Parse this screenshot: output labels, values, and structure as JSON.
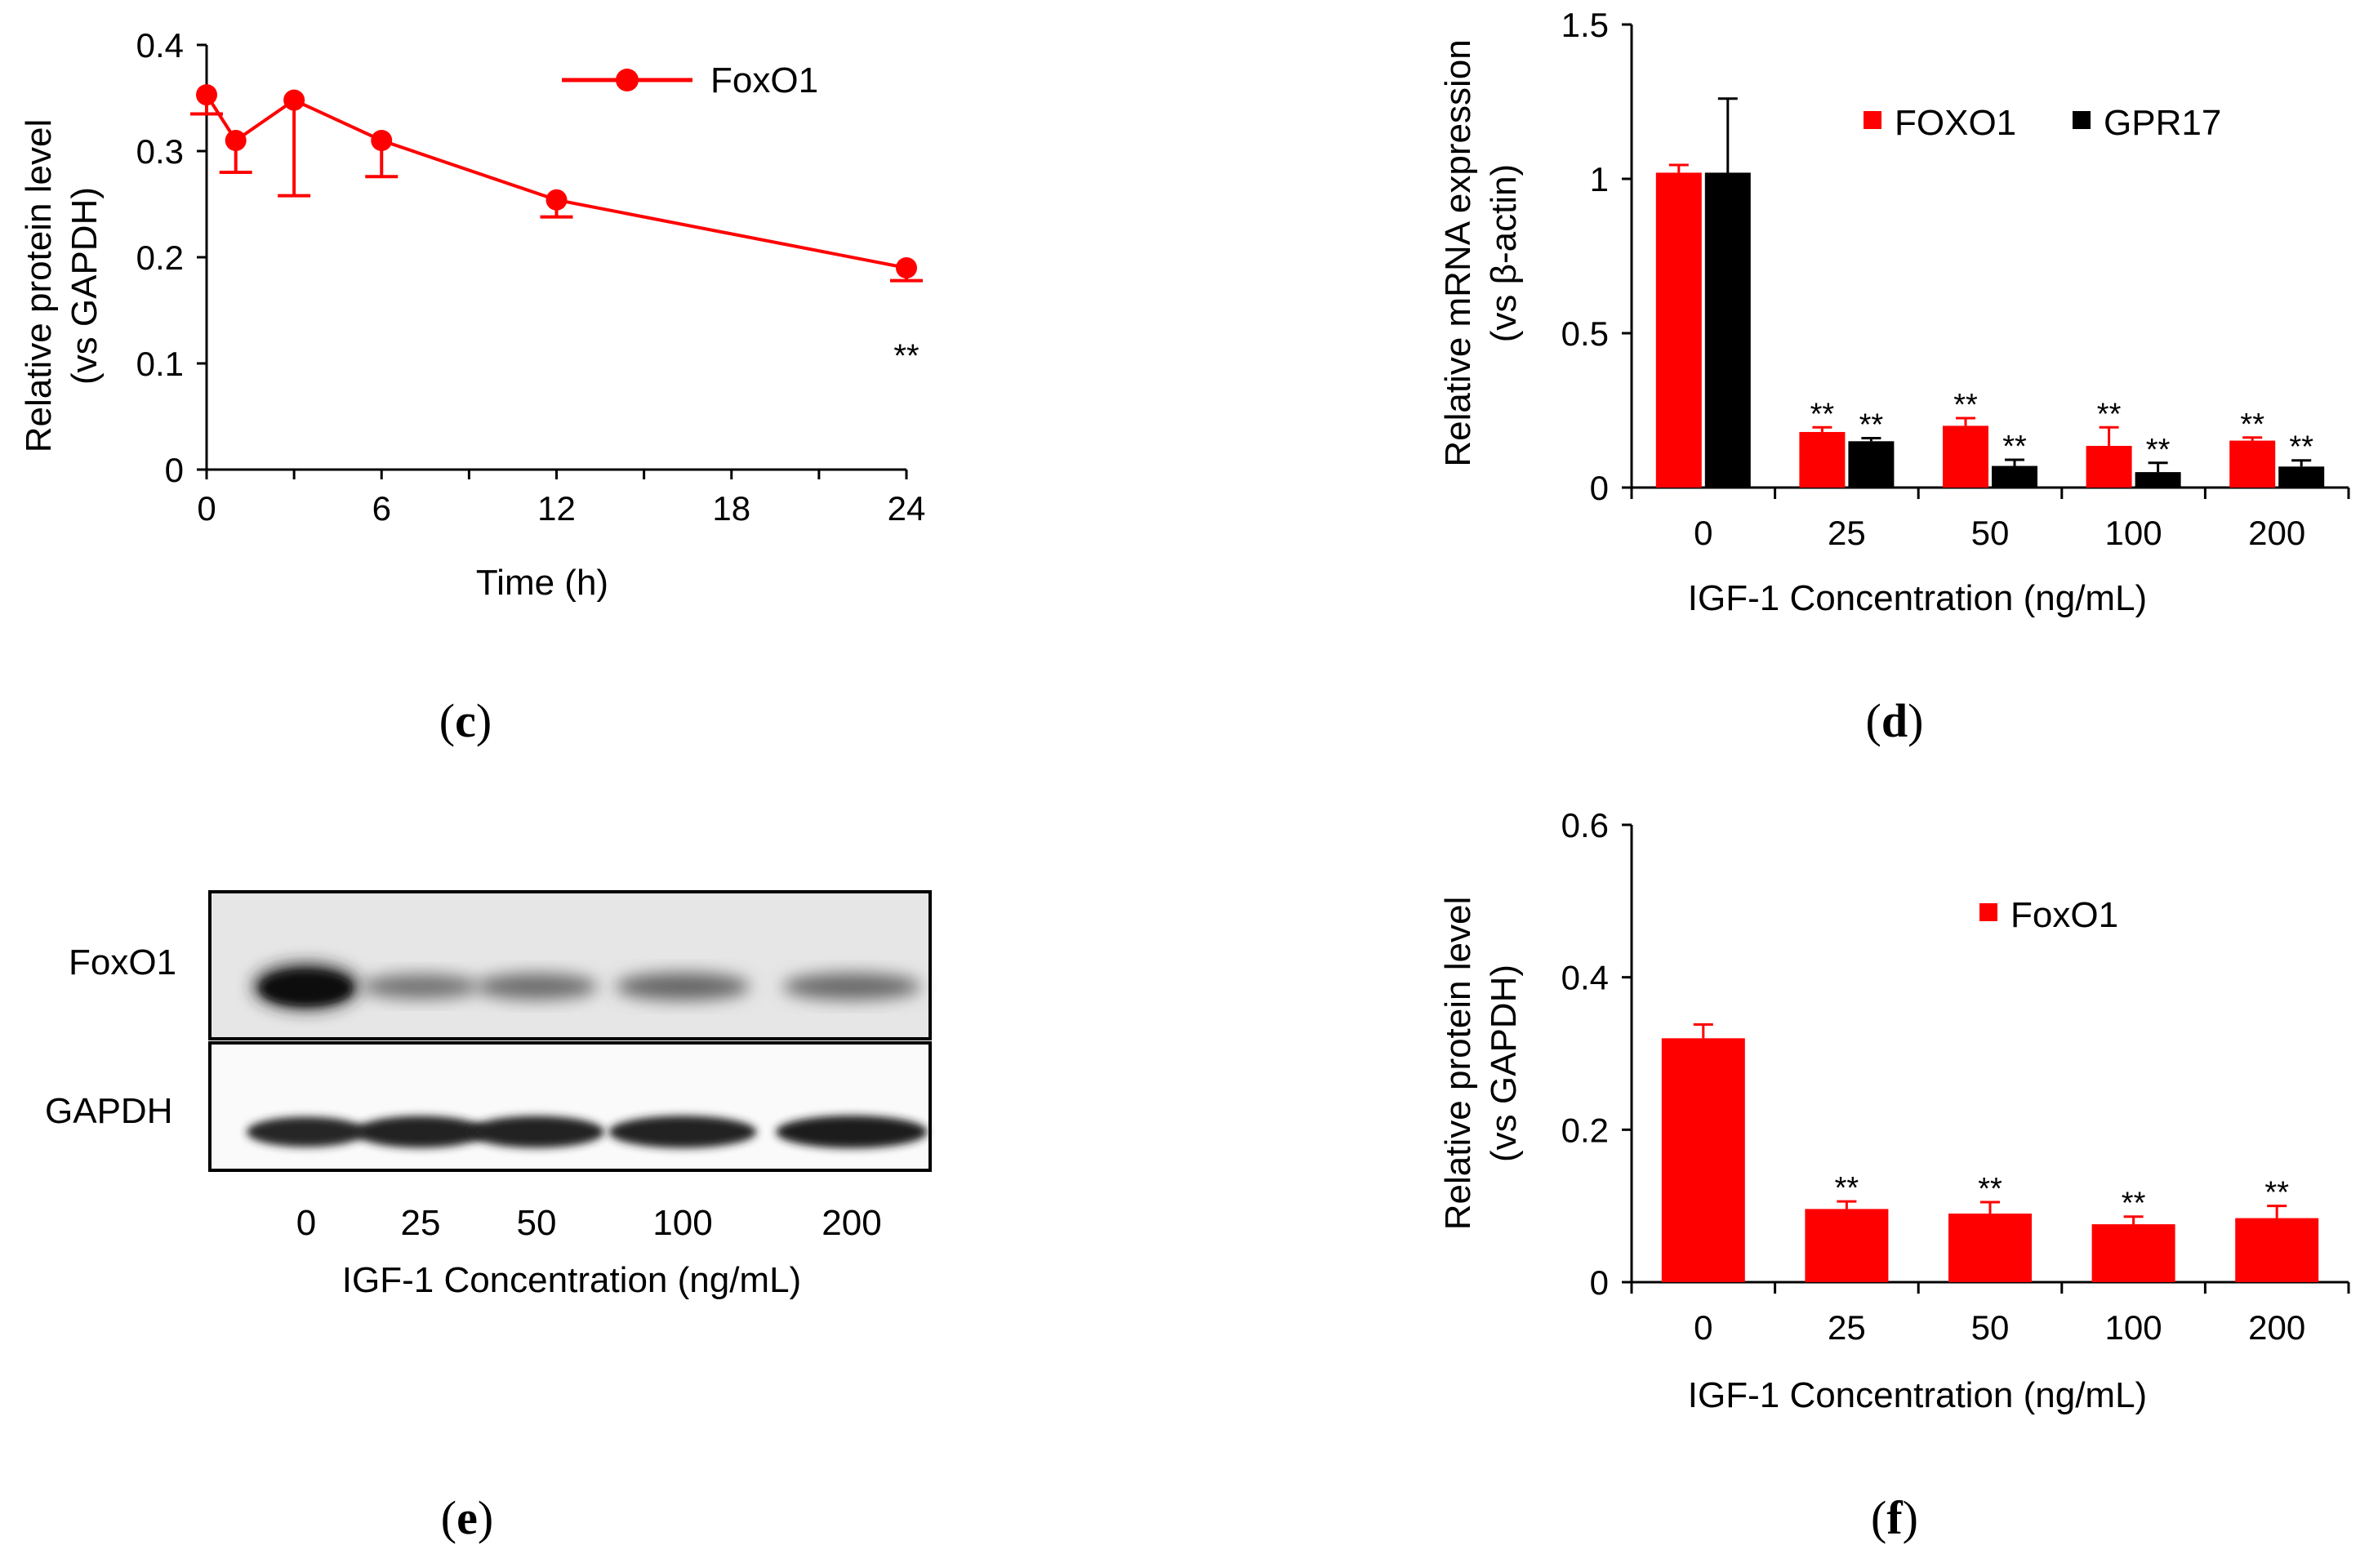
{
  "colors": {
    "red": "#ff0000",
    "black": "#000000",
    "axis": "#000000"
  },
  "panels": {
    "c": {
      "label": "c"
    },
    "d": {
      "label": "d"
    },
    "e": {
      "label": "e"
    },
    "f": {
      "label": "f"
    }
  },
  "chart_data": [
    {
      "panel": "c",
      "type": "line",
      "title": "",
      "xlabel": "Time (h)",
      "ylabel": [
        "Relative protein level",
        "(vs GAPDH)"
      ],
      "x_ticks": [
        "0",
        "6",
        "12",
        "18",
        "24"
      ],
      "y_ticks": [
        "0",
        "0.1",
        "0.2",
        "0.3",
        "0.4"
      ],
      "xlim": [
        0,
        24
      ],
      "ylim": [
        0,
        0.4
      ],
      "legend": "top-right",
      "series": [
        {
          "name": "FoxO1",
          "x": [
            0,
            1,
            3,
            6,
            12,
            24
          ],
          "y": [
            0.353,
            0.31,
            0.348,
            0.31,
            0.254,
            0.19
          ],
          "err": [
            0.018,
            0.03,
            0.09,
            0.034,
            0.016,
            0.012
          ],
          "err_dir": [
            -1,
            -1,
            -1,
            -1,
            -1,
            -1
          ]
        }
      ],
      "annotations": [
        {
          "x": 24,
          "text": "**"
        }
      ]
    },
    {
      "panel": "d",
      "type": "bar",
      "title": "",
      "xlabel": "IGF-1 Concentration   (ng/mL)",
      "ylabel": [
        "Relative mRNA expression",
        "(vs β-actin)"
      ],
      "categories": [
        "0",
        "25",
        "50",
        "100",
        "200"
      ],
      "y_ticks": [
        "0",
        "0.5",
        "1",
        "1.5"
      ],
      "ylim": [
        0,
        1.5
      ],
      "legend": "top-right",
      "series": [
        {
          "name": "FOXO1",
          "values": [
            1.02,
            0.18,
            0.2,
            0.135,
            0.152
          ],
          "err": [
            0.025,
            0.015,
            0.025,
            0.06,
            0.01
          ],
          "stars": [
            "",
            "**",
            "**",
            "**",
            "**"
          ]
        },
        {
          "name": "GPR17",
          "values": [
            1.02,
            0.15,
            0.07,
            0.05,
            0.068
          ],
          "err": [
            0.24,
            0.01,
            0.02,
            0.03,
            0.02
          ],
          "stars": [
            "",
            "**",
            "**",
            "**",
            "**"
          ]
        }
      ]
    },
    {
      "panel": "f",
      "type": "bar",
      "title": "",
      "xlabel": "IGF-1 Concentration   (ng/mL)",
      "ylabel": [
        "Relative protein  level",
        "(vs GAPDH)"
      ],
      "categories": [
        "0",
        "25",
        "50",
        "100",
        "200"
      ],
      "y_ticks": [
        "0",
        "0.2",
        "0.4",
        "0.6"
      ],
      "ylim": [
        0,
        0.6
      ],
      "legend": "top-right",
      "series": [
        {
          "name": "FoxO1",
          "values": [
            0.32,
            0.096,
            0.09,
            0.076,
            0.084
          ],
          "err": [
            0.018,
            0.01,
            0.015,
            0.01,
            0.016
          ],
          "stars": [
            "",
            "**",
            "**",
            "**",
            "**"
          ]
        }
      ]
    }
  ],
  "blot": {
    "rows": [
      "FoxO1",
      "GAPDH"
    ],
    "lanes": [
      "0",
      "25",
      "50",
      "100",
      "200"
    ],
    "xlabel": "IGF-1 Concentration    (ng/mL)",
    "foxo1_intensity": [
      1.0,
      0.35,
      0.4,
      0.45,
      0.42
    ],
    "gapdh_intensity": [
      0.85,
      0.95,
      0.95,
      0.97,
      1.0
    ]
  }
}
